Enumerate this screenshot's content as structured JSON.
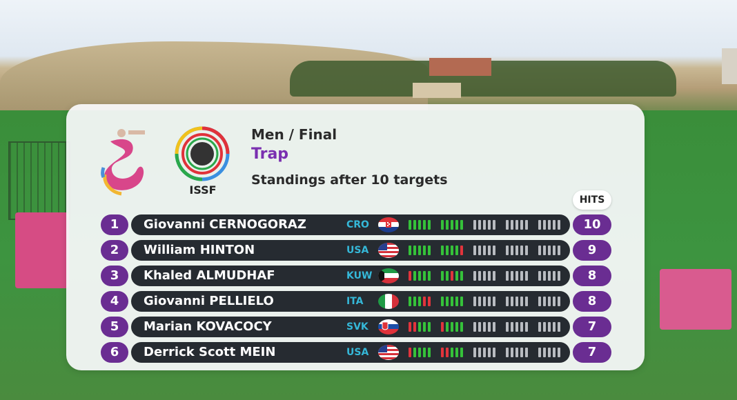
{
  "header": {
    "event": "Men / Final",
    "discipline": "Trap",
    "standing": "Standings after 10 targets",
    "issf": "ISSF",
    "hits_label": "HITS"
  },
  "colors": {
    "hit": "#35c23a",
    "miss": "#e2343c",
    "pending": "#b9bcc1",
    "rank": "#6a2d92",
    "nation": "#35b8d8"
  },
  "rows": [
    {
      "rank": "1",
      "name": "Giovanni CERNOGORAZ",
      "nation": "CRO",
      "flag": "croatia-flag-icon",
      "hits": "10",
      "shots": [
        "h",
        "h",
        "h",
        "h",
        "h",
        "h",
        "h",
        "h",
        "h",
        "h",
        "p",
        "p",
        "p",
        "p",
        "p",
        "p",
        "p",
        "p",
        "p",
        "p",
        "p",
        "p",
        "p",
        "p",
        "p"
      ]
    },
    {
      "rank": "2",
      "name": "William HINTON",
      "nation": "USA",
      "flag": "usa-flag-icon",
      "hits": "9",
      "shots": [
        "h",
        "h",
        "h",
        "h",
        "h",
        "h",
        "h",
        "h",
        "h",
        "m",
        "p",
        "p",
        "p",
        "p",
        "p",
        "p",
        "p",
        "p",
        "p",
        "p",
        "p",
        "p",
        "p",
        "p",
        "p"
      ]
    },
    {
      "rank": "3",
      "name": "Khaled ALMUDHAF",
      "nation": "KUW",
      "flag": "kuwait-flag-icon",
      "hits": "8",
      "shots": [
        "m",
        "h",
        "h",
        "h",
        "h",
        "h",
        "h",
        "m",
        "h",
        "h",
        "p",
        "p",
        "p",
        "p",
        "p",
        "p",
        "p",
        "p",
        "p",
        "p",
        "p",
        "p",
        "p",
        "p",
        "p"
      ]
    },
    {
      "rank": "4",
      "name": "Giovanni PELLIELO",
      "nation": "ITA",
      "flag": "italy-flag-icon",
      "hits": "8",
      "shots": [
        "h",
        "h",
        "h",
        "m",
        "m",
        "h",
        "h",
        "h",
        "h",
        "h",
        "p",
        "p",
        "p",
        "p",
        "p",
        "p",
        "p",
        "p",
        "p",
        "p",
        "p",
        "p",
        "p",
        "p",
        "p"
      ]
    },
    {
      "rank": "5",
      "name": "Marian KOVACOCY",
      "nation": "SVK",
      "flag": "slovakia-flag-icon",
      "hits": "7",
      "shots": [
        "m",
        "m",
        "h",
        "h",
        "h",
        "m",
        "h",
        "h",
        "h",
        "h",
        "p",
        "p",
        "p",
        "p",
        "p",
        "p",
        "p",
        "p",
        "p",
        "p",
        "p",
        "p",
        "p",
        "p",
        "p"
      ]
    },
    {
      "rank": "6",
      "name": "Derrick Scott MEIN",
      "nation": "USA",
      "flag": "usa-flag-icon",
      "hits": "7",
      "shots": [
        "m",
        "h",
        "h",
        "h",
        "h",
        "m",
        "m",
        "h",
        "h",
        "h",
        "p",
        "p",
        "p",
        "p",
        "p",
        "p",
        "p",
        "p",
        "p",
        "p",
        "p",
        "p",
        "p",
        "p",
        "p"
      ]
    }
  ]
}
